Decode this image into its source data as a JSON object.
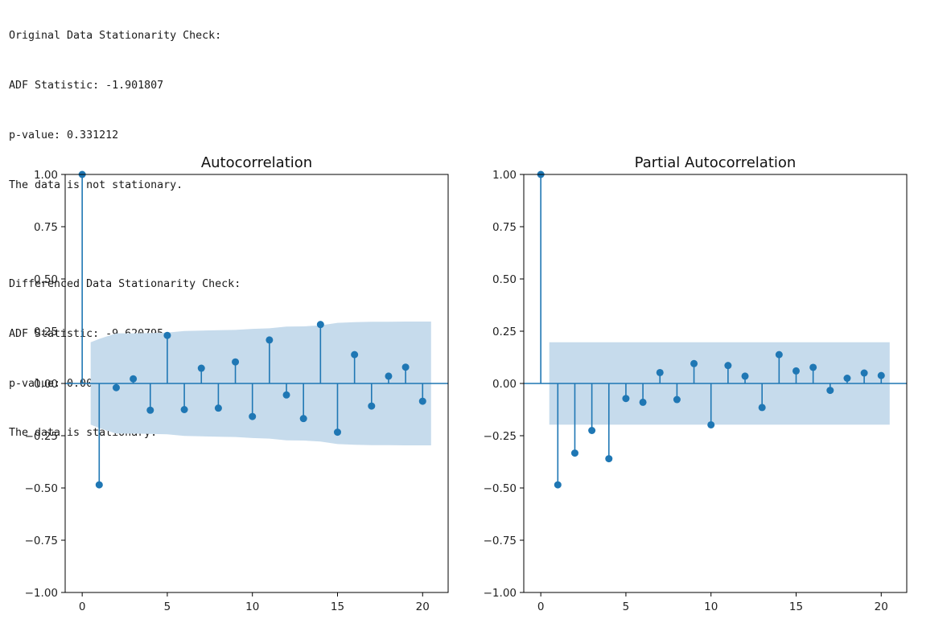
{
  "console": {
    "lines": [
      "Original Data Stationarity Check:",
      "ADF Statistic: -1.901807",
      "p-value: 0.331212",
      "The data is not stationary.",
      "",
      "Differenced Data Stationarity Check:",
      "ADF Statistic: -9.620795",
      "p-value: 0.000000",
      "The data is stationary."
    ]
  },
  "colors": {
    "stem": "#1f77b4",
    "confidence_band": "#c6dbec",
    "axis": "#000000"
  },
  "chart_data": [
    {
      "type": "stem",
      "title": "Autocorrelation",
      "x": [
        0,
        1,
        2,
        3,
        4,
        5,
        6,
        7,
        8,
        9,
        10,
        11,
        12,
        13,
        14,
        15,
        16,
        17,
        18,
        19,
        20
      ],
      "values": [
        1.0,
        -0.485,
        -0.02,
        0.022,
        -0.128,
        0.23,
        -0.125,
        0.073,
        -0.118,
        0.103,
        -0.158,
        0.208,
        -0.055,
        -0.168,
        0.282,
        -0.233,
        0.138,
        -0.108,
        0.035,
        0.078,
        -0.085
      ],
      "confidence_band": {
        "x": [
          0.5,
          1,
          2,
          3,
          4,
          5,
          6,
          7,
          8,
          9,
          10,
          11,
          12,
          13,
          14,
          15,
          16,
          17,
          18,
          19,
          20,
          20.5
        ],
        "upper": [
          0.197,
          0.213,
          0.24,
          0.24,
          0.241,
          0.243,
          0.251,
          0.253,
          0.255,
          0.256,
          0.261,
          0.264,
          0.272,
          0.273,
          0.278,
          0.29,
          0.293,
          0.295,
          0.295,
          0.296,
          0.296,
          0.296
        ]
      },
      "xlim": [
        -1,
        21.5
      ],
      "ylim": [
        -1.0,
        1.0
      ],
      "xticks": [
        "0",
        "5",
        "10",
        "15",
        "20"
      ],
      "yticks": [
        "1.00",
        "0.75",
        "0.50",
        "0.25",
        "0.00",
        "−0.25",
        "−0.50",
        "−0.75",
        "−1.00"
      ]
    },
    {
      "type": "stem",
      "title": "Partial Autocorrelation",
      "x": [
        0,
        1,
        2,
        3,
        4,
        5,
        6,
        7,
        8,
        9,
        10,
        11,
        12,
        13,
        14,
        15,
        16,
        17,
        18,
        19,
        20
      ],
      "values": [
        1.0,
        -0.485,
        -0.333,
        -0.225,
        -0.36,
        -0.072,
        -0.09,
        0.052,
        -0.077,
        0.095,
        -0.198,
        0.086,
        0.035,
        -0.115,
        0.138,
        0.06,
        0.077,
        -0.033,
        0.025,
        0.05,
        0.038
      ],
      "confidence_band": {
        "x": [
          0.5,
          20.5
        ],
        "upper": [
          0.197,
          0.197
        ]
      },
      "xlim": [
        -1,
        21.5
      ],
      "ylim": [
        -1.0,
        1.0
      ],
      "xticks": [
        "0",
        "5",
        "10",
        "15",
        "20"
      ],
      "yticks": [
        "1.00",
        "0.75",
        "0.50",
        "0.25",
        "0.00",
        "−0.25",
        "−0.50",
        "−0.75",
        "−1.00"
      ]
    }
  ]
}
